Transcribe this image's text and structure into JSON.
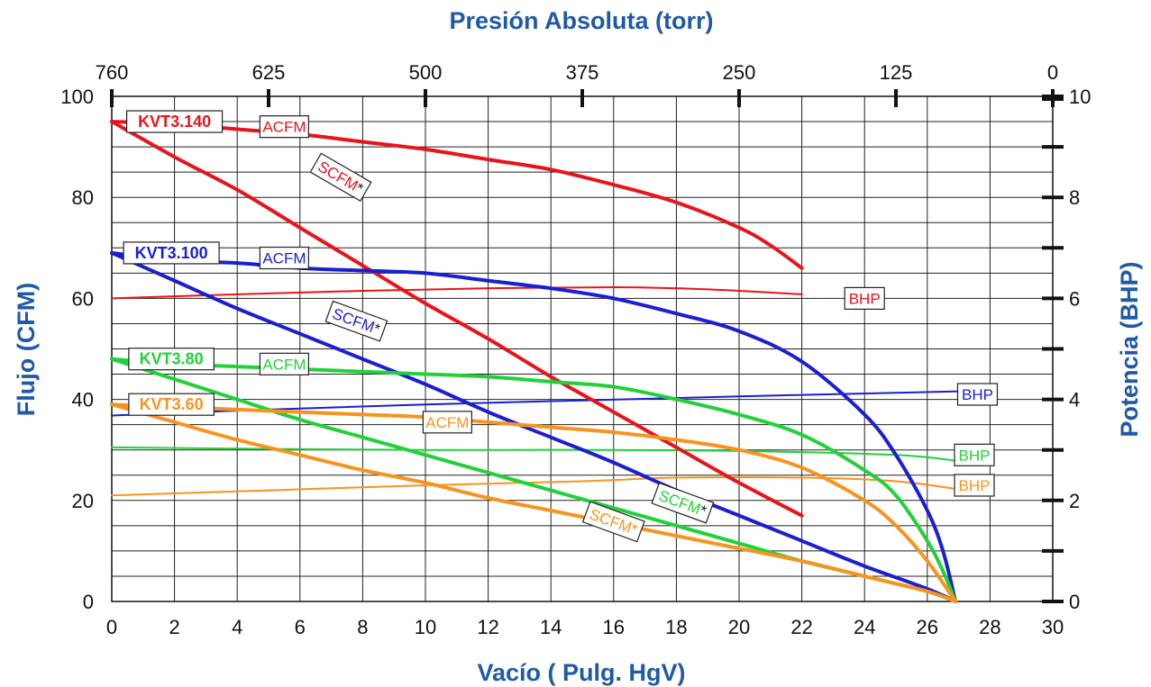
{
  "chart_data": {
    "type": "line",
    "title": "",
    "xlabel": "Vacío ( Pulg. HgV)",
    "top_xlabel": "Presión Absoluta (torr)",
    "ylabel_left": "Flujo  (CFM)",
    "ylabel_right": "Potencia (BHP)",
    "xlim": [
      0,
      30
    ],
    "ylim_left": [
      0,
      100
    ],
    "ylim_right": [
      0,
      10
    ],
    "x_ticks": [
      "0",
      "2",
      "4",
      "6",
      "8",
      "10",
      "12",
      "14",
      "16",
      "18",
      "20",
      "22",
      "24",
      "26",
      "28",
      "30"
    ],
    "y_ticks_left": [
      "0",
      "20",
      "40",
      "60",
      "80",
      "100"
    ],
    "y_ticks_right": [
      "0",
      "2",
      "4",
      "6",
      "8",
      "10"
    ],
    "top_ticks": [
      {
        "label": "760",
        "x": 0
      },
      {
        "label": "625",
        "x": 5
      },
      {
        "label": "500",
        "x": 10
      },
      {
        "label": "375",
        "x": 15
      },
      {
        "label": "250",
        "x": 20
      },
      {
        "label": "125",
        "x": 25
      },
      {
        "label": "0",
        "x": 30
      }
    ],
    "grid": true,
    "models": [
      {
        "name": "KVT3.140",
        "color": "#e8141b",
        "acfm_label": "ACFM",
        "scfm_label": "SCFM*",
        "bhp_label": "BHP",
        "acfm": [
          [
            0,
            95
          ],
          [
            2,
            94.5
          ],
          [
            4,
            93.5
          ],
          [
            6,
            92.5
          ],
          [
            8,
            91
          ],
          [
            10,
            89.5
          ],
          [
            12,
            87.5
          ],
          [
            14,
            85.5
          ],
          [
            16,
            82.5
          ],
          [
            18,
            79
          ],
          [
            20,
            74
          ],
          [
            21,
            70.5
          ],
          [
            22,
            66
          ]
        ],
        "scfm": [
          [
            0,
            95
          ],
          [
            2,
            88
          ],
          [
            4,
            81.5
          ],
          [
            6,
            74
          ],
          [
            8,
            66.5
          ],
          [
            10,
            59
          ],
          [
            12,
            52
          ],
          [
            14,
            44.5
          ],
          [
            16,
            37.5
          ],
          [
            18,
            30.5
          ],
          [
            20,
            23.5
          ],
          [
            22,
            17
          ]
        ],
        "bhp": [
          [
            0,
            6.0
          ],
          [
            4,
            6.08
          ],
          [
            8,
            6.15
          ],
          [
            12,
            6.2
          ],
          [
            16,
            6.22
          ],
          [
            18,
            6.2
          ],
          [
            20,
            6.15
          ],
          [
            22,
            6.08
          ]
        ]
      },
      {
        "name": "KVT3.100",
        "color": "#1a1fd0",
        "acfm_label": "ACFM",
        "scfm_label": "SCFM*",
        "bhp_label": "BHP",
        "acfm": [
          [
            0,
            69
          ],
          [
            2,
            67.5
          ],
          [
            4,
            67
          ],
          [
            6,
            66
          ],
          [
            8,
            65.5
          ],
          [
            10,
            65
          ],
          [
            12,
            63.5
          ],
          [
            14,
            62
          ],
          [
            16,
            60
          ],
          [
            18,
            57
          ],
          [
            20,
            53.5
          ],
          [
            22,
            47.5
          ],
          [
            24,
            37
          ],
          [
            25,
            29
          ],
          [
            26,
            18
          ],
          [
            26.5,
            10
          ],
          [
            26.9,
            0
          ]
        ],
        "scfm": [
          [
            0,
            69
          ],
          [
            2,
            63.5
          ],
          [
            4,
            58
          ],
          [
            6,
            53
          ],
          [
            8,
            48
          ],
          [
            10,
            43
          ],
          [
            12,
            37.5
          ],
          [
            14,
            32.5
          ],
          [
            16,
            27.5
          ],
          [
            18,
            22
          ],
          [
            20,
            17
          ],
          [
            22,
            12
          ],
          [
            24,
            7
          ],
          [
            26,
            2.5
          ],
          [
            26.9,
            0
          ]
        ],
        "bhp": [
          [
            0,
            3.68
          ],
          [
            5,
            3.8
          ],
          [
            10,
            3.9
          ],
          [
            15,
            3.98
          ],
          [
            20,
            4.06
          ],
          [
            25,
            4.13
          ],
          [
            27,
            4.16
          ]
        ]
      },
      {
        "name": "KVT3.80",
        "color": "#22d13a",
        "acfm_label": "ACFM",
        "scfm_label": "SCFM*",
        "bhp_label": "BHP",
        "acfm": [
          [
            0,
            48
          ],
          [
            2,
            47
          ],
          [
            4,
            46.5
          ],
          [
            6,
            46
          ],
          [
            8,
            45.5
          ],
          [
            10,
            45
          ],
          [
            12,
            44.5
          ],
          [
            14,
            43.5
          ],
          [
            16,
            42.5
          ],
          [
            18,
            40
          ],
          [
            20,
            37
          ],
          [
            22,
            33
          ],
          [
            24,
            26
          ],
          [
            25,
            21
          ],
          [
            26,
            12
          ],
          [
            26.5,
            6
          ],
          [
            26.9,
            0
          ]
        ],
        "scfm": [
          [
            0,
            48
          ],
          [
            2,
            44
          ],
          [
            4,
            40
          ],
          [
            6,
            36
          ],
          [
            8,
            32.5
          ],
          [
            10,
            29
          ],
          [
            12,
            25.5
          ],
          [
            14,
            22
          ],
          [
            16,
            18.5
          ],
          [
            18,
            15
          ],
          [
            20,
            11.5
          ],
          [
            22,
            8
          ],
          [
            24,
            5
          ],
          [
            26,
            2
          ],
          [
            26.9,
            0
          ]
        ],
        "bhp": [
          [
            0,
            3.05
          ],
          [
            5,
            3.02
          ],
          [
            10,
            3.0
          ],
          [
            15,
            3.0
          ],
          [
            20,
            2.98
          ],
          [
            25,
            2.9
          ],
          [
            27,
            2.78
          ]
        ]
      },
      {
        "name": "KVT3.60",
        "color": "#f7941e",
        "acfm_label": "ACFM",
        "scfm_label": "SCFM*",
        "bhp_label": "BHP",
        "acfm": [
          [
            0,
            39
          ],
          [
            2,
            38.5
          ],
          [
            4,
            38
          ],
          [
            6,
            37.5
          ],
          [
            8,
            37
          ],
          [
            10,
            36.5
          ],
          [
            12,
            35.5
          ],
          [
            14,
            34.5
          ],
          [
            16,
            33.5
          ],
          [
            18,
            32
          ],
          [
            20,
            30
          ],
          [
            22,
            26.5
          ],
          [
            24,
            20
          ],
          [
            25,
            15
          ],
          [
            26,
            8
          ],
          [
            26.9,
            0
          ]
        ],
        "scfm": [
          [
            0,
            39
          ],
          [
            2,
            35.5
          ],
          [
            4,
            32
          ],
          [
            6,
            29
          ],
          [
            8,
            26
          ],
          [
            10,
            23.5
          ],
          [
            12,
            20.5
          ],
          [
            14,
            18
          ],
          [
            16,
            15.5
          ],
          [
            18,
            13
          ],
          [
            20,
            10.5
          ],
          [
            22,
            8
          ],
          [
            24,
            5
          ],
          [
            26,
            2
          ],
          [
            26.9,
            0
          ]
        ],
        "bhp": [
          [
            0,
            2.1
          ],
          [
            5,
            2.2
          ],
          [
            10,
            2.3
          ],
          [
            15,
            2.38
          ],
          [
            18,
            2.45
          ],
          [
            22,
            2.45
          ],
          [
            25,
            2.38
          ],
          [
            27,
            2.22
          ]
        ]
      }
    ]
  }
}
